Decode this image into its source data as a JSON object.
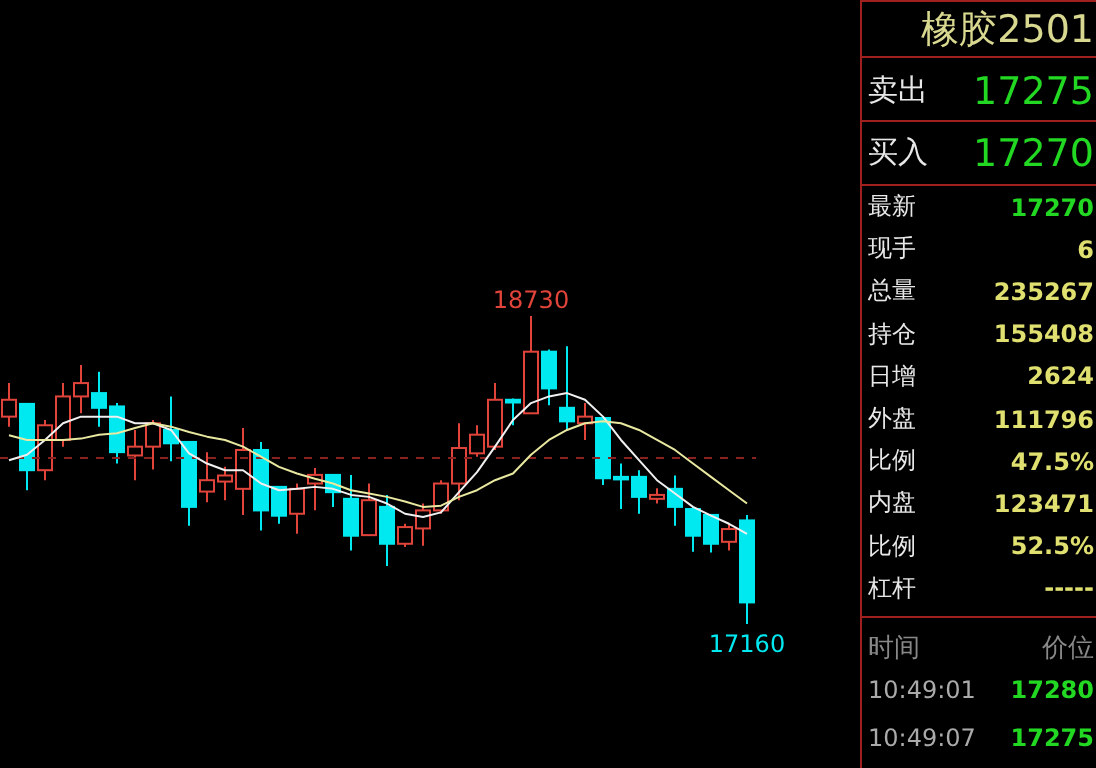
{
  "chart_data": [
    {
      "type": "candlestick",
      "categories": [
        null,
        null,
        null,
        null,
        null,
        null,
        null,
        null,
        null,
        null,
        null,
        null,
        null,
        null,
        null,
        null,
        null,
        null,
        null,
        null,
        null,
        null,
        null,
        null,
        null,
        null,
        null,
        null,
        null,
        null,
        null,
        null,
        null,
        null,
        null,
        null,
        null,
        null,
        null,
        null,
        null,
        null
      ],
      "ohlc": [
        [
          18217,
          18388,
          18166,
          18303
        ],
        [
          18282,
          18282,
          17842,
          17944
        ],
        [
          17944,
          18200,
          17893,
          18173
        ],
        [
          18098,
          18388,
          18064,
          18320
        ],
        [
          18320,
          18480,
          18234,
          18388
        ],
        [
          18337,
          18446,
          18166,
          18262
        ],
        [
          18269,
          18286,
          17978,
          18036
        ],
        [
          18019,
          18149,
          17893,
          18064
        ],
        [
          18064,
          18200,
          17947,
          18183
        ],
        [
          18149,
          18320,
          17989,
          18081
        ],
        [
          18088,
          18088,
          17661,
          17757
        ],
        [
          17835,
          18036,
          17780,
          17893
        ],
        [
          17886,
          17961,
          17791,
          17917
        ],
        [
          17849,
          18159,
          17716,
          18047
        ],
        [
          18047,
          18088,
          17637,
          17739
        ],
        [
          17859,
          17859,
          17671,
          17712
        ],
        [
          17722,
          17876,
          17620,
          17849
        ],
        [
          17876,
          17955,
          17740,
          17920
        ],
        [
          17920,
          17920,
          17757,
          17832
        ],
        [
          17798,
          17920,
          17535,
          17610
        ],
        [
          17613,
          17876,
          17610,
          17791
        ],
        [
          17757,
          17818,
          17456,
          17569
        ],
        [
          17569,
          17671,
          17552,
          17654
        ],
        [
          17647,
          17774,
          17559,
          17739
        ],
        [
          17739,
          17893,
          17722,
          17876
        ],
        [
          17876,
          18183,
          17791,
          18057
        ],
        [
          18030,
          18173,
          18012,
          18125
        ],
        [
          18064,
          18388,
          18047,
          18303
        ],
        [
          18303,
          18309,
          18173,
          18289
        ],
        [
          18234,
          18730,
          18234,
          18548
        ],
        [
          18548,
          18559,
          18275,
          18361
        ],
        [
          18262,
          18576,
          18149,
          18193
        ],
        [
          18183,
          18286,
          18098,
          18217
        ],
        [
          18210,
          18217,
          17869,
          17903
        ],
        [
          17910,
          17978,
          17746,
          17897
        ],
        [
          17910,
          17944,
          17722,
          17808
        ],
        [
          17798,
          17852,
          17774,
          17818
        ],
        [
          17849,
          17917,
          17661,
          17757
        ],
        [
          17746,
          17757,
          17528,
          17610
        ],
        [
          17716,
          17716,
          17524,
          17569
        ],
        [
          17579,
          17671,
          17535,
          17644
        ],
        [
          17688,
          17716,
          17160,
          17270
        ]
      ],
      "colors": [
        "#e0443a",
        "#00e8f0",
        "#e0443a",
        "#e0443a",
        "#e0443a",
        "#00e8f0",
        "#00e8f0",
        "#e0443a",
        "#e0443a",
        "#00e8f0",
        "#00e8f0",
        "#e0443a",
        "#e0443a",
        "#e0443a",
        "#00e8f0",
        "#00e8f0",
        "#e0443a",
        "#e0443a",
        "#00e8f0",
        "#00e8f0",
        "#e0443a",
        "#00e8f0",
        "#e0443a",
        "#e0443a",
        "#e0443a",
        "#e0443a",
        "#e0443a",
        "#e0443a",
        "#00e8f0",
        "#e0443a",
        "#00e8f0",
        "#00e8f0",
        "#e0443a",
        "#00e8f0",
        "#00e8f0",
        "#00e8f0",
        "#e0443a",
        "#00e8f0",
        "#00e8f0",
        "#00e8f0",
        "#e0443a",
        "#00e8f0"
      ],
      "series": [
        {
          "type": "line",
          "color": "#f0f0f0",
          "values": [
            17995,
            18023,
            18098,
            18183,
            18217,
            18217,
            18217,
            18183,
            18183,
            18149,
            18030,
            17978,
            17944,
            17944,
            17876,
            17842,
            17849,
            17859,
            17849,
            17818,
            17808,
            17774,
            17722,
            17705,
            17729,
            17832,
            17934,
            18064,
            18200,
            18286,
            18320,
            18337,
            18303,
            18217,
            18098,
            17995,
            17893,
            17825,
            17757,
            17712,
            17671,
            17620
          ]
        },
        {
          "type": "line",
          "color": "#e8e8a0",
          "values": [
            18122,
            18098,
            18098,
            18098,
            18105,
            18125,
            18132,
            18159,
            18183,
            18166,
            18139,
            18115,
            18098,
            18064,
            18013,
            17961,
            17927,
            17900,
            17876,
            17842,
            17825,
            17808,
            17784,
            17757,
            17763,
            17808,
            17842,
            17893,
            17927,
            18023,
            18098,
            18149,
            18183,
            18193,
            18183,
            18149,
            18098,
            18047,
            17978,
            17910,
            17842,
            17774
          ]
        }
      ],
      "ref_lines": [
        {
          "axis": "y",
          "value": 18006,
          "color": "#8a2020",
          "line_style": "dashed"
        }
      ],
      "annotations": [
        {
          "text": "18730",
          "y": 18730
        },
        {
          "text": "17160",
          "y": 17160
        }
      ],
      "marker": "none"
    },
    {
      "type": "other",
      "title": "橡胶2501",
      "annotations": [
        "卖出",
        "17275",
        "买入",
        "17270",
        "最新",
        "17270",
        "现手",
        "6",
        "总量",
        "235267",
        "持仓",
        "155408",
        "日增",
        "2624",
        "外盘",
        "111796",
        "比例",
        "47.5%",
        "内盘",
        "123471",
        "比例",
        "52.5%",
        "杠杆",
        "-----",
        "时间",
        "价位",
        "10:49:01",
        "17280",
        "10:49:07",
        "17275"
      ]
    }
  ]
}
